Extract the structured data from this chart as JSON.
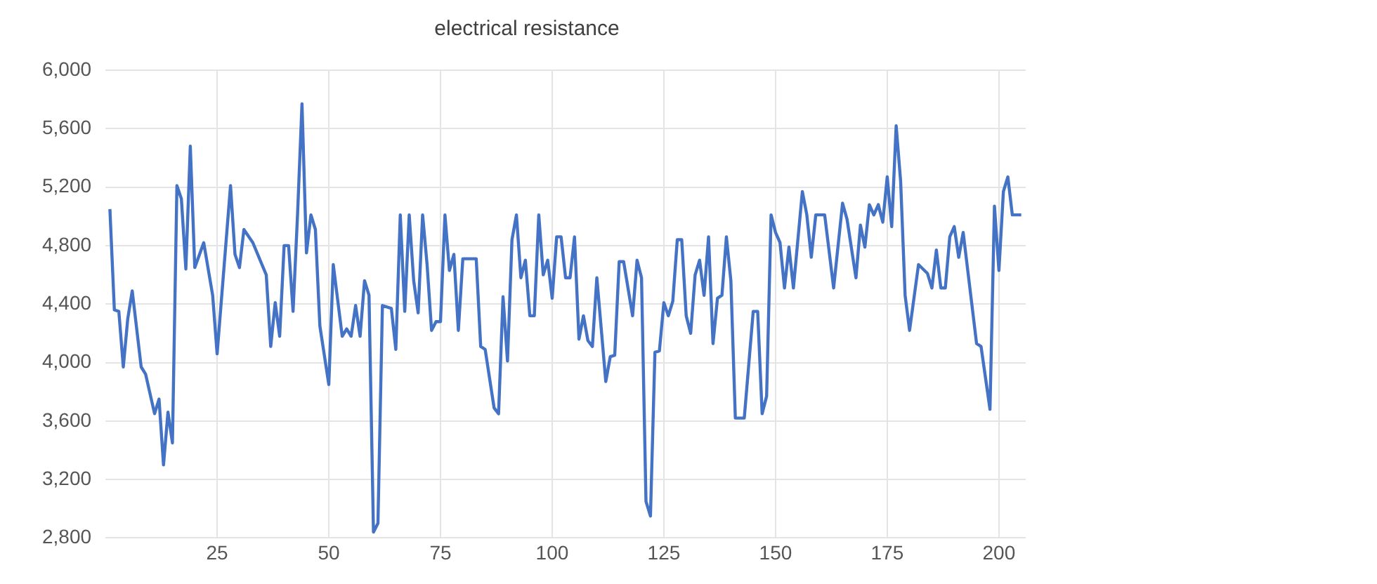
{
  "chart_data": {
    "type": "line",
    "title": "electrical resistance",
    "x": [
      1,
      2,
      3,
      4,
      5,
      6,
      8,
      9,
      11,
      12,
      13,
      14,
      15,
      16,
      17,
      18,
      19,
      20,
      22,
      24,
      25,
      28,
      29,
      30,
      31,
      33,
      36,
      37,
      38,
      39,
      40,
      41,
      42,
      43,
      44,
      45,
      46,
      47,
      48,
      50,
      51,
      53,
      54,
      55,
      56,
      57,
      58,
      59,
      60,
      61,
      62,
      64,
      65,
      66,
      67,
      68,
      69,
      70,
      71,
      72,
      73,
      74,
      75,
      76,
      77,
      78,
      79,
      80,
      83,
      84,
      85,
      87,
      88,
      89,
      90,
      91,
      92,
      93,
      94,
      95,
      96,
      97,
      98,
      99,
      100,
      101,
      102,
      103,
      104,
      105,
      106,
      107,
      108,
      109,
      110,
      112,
      113,
      114,
      115,
      116,
      118,
      119,
      120,
      121,
      122,
      123,
      124,
      125,
      126,
      127,
      128,
      129,
      130,
      131,
      132,
      133,
      134,
      135,
      136,
      137,
      138,
      139,
      140,
      141,
      143,
      145,
      146,
      147,
      148,
      149,
      150,
      151,
      152,
      153,
      154,
      156,
      157,
      158,
      159,
      161,
      163,
      165,
      166,
      168,
      169,
      170,
      171,
      172,
      173,
      174,
      175,
      176,
      177,
      178,
      179,
      180,
      182,
      184,
      185,
      186,
      187,
      188,
      189,
      190,
      191,
      192,
      195,
      196,
      198,
      199,
      200,
      201,
      202,
      203,
      205
    ],
    "series": [
      {
        "color": "#4472c4",
        "values": [
          5050,
          4360,
          4350,
          3970,
          4300,
          4490,
          3970,
          3920,
          3650,
          3750,
          3300,
          3660,
          3450,
          5210,
          5120,
          4640,
          5480,
          4650,
          4820,
          4460,
          4060,
          5210,
          4740,
          4650,
          4910,
          4820,
          4600,
          4110,
          4410,
          4180,
          4800,
          4800,
          4350,
          5010,
          5770,
          4750,
          5010,
          4910,
          4250,
          3850,
          4670,
          4180,
          4230,
          4180,
          4390,
          4180,
          4560,
          4460,
          2840,
          2900,
          4390,
          4370,
          4090,
          5010,
          4350,
          5010,
          4560,
          4340,
          5010,
          4670,
          4220,
          4280,
          4280,
          5010,
          4630,
          4740,
          4220,
          4710,
          4710,
          4110,
          4090,
          3690,
          3650,
          4450,
          4010,
          4840,
          5010,
          4580,
          4700,
          4320,
          4320,
          5010,
          4600,
          4700,
          4440,
          4860,
          4860,
          4580,
          4580,
          4860,
          4160,
          4320,
          4150,
          4110,
          4580,
          3870,
          4040,
          4050,
          4690,
          4690,
          4320,
          4700,
          4580,
          3050,
          2950,
          4070,
          4080,
          4410,
          4320,
          4420,
          4840,
          4840,
          4320,
          4200,
          4600,
          4700,
          4460,
          4860,
          4130,
          4440,
          4460,
          4860,
          4560,
          3620,
          3620,
          4350,
          4350,
          3650,
          3770,
          5010,
          4890,
          4820,
          4510,
          4790,
          4510,
          5170,
          5010,
          4720,
          5010,
          5010,
          4510,
          5090,
          4980,
          4580,
          4940,
          4790,
          5080,
          5010,
          5080,
          4960,
          5270,
          4930,
          5620,
          5240,
          4460,
          4220,
          4670,
          4610,
          4510,
          4770,
          4510,
          4510,
          4860,
          4930,
          4720,
          4890,
          4130,
          4110,
          3680,
          5070,
          4630,
          5170,
          5270,
          5010,
          5010
        ]
      }
    ],
    "xlim": [
      0,
      206
    ],
    "xticks": [
      25,
      50,
      75,
      100,
      125,
      150,
      175,
      200
    ],
    "ylim": [
      2800,
      6000
    ],
    "yticks": [
      {
        "value": 2800,
        "label": "2,800"
      },
      {
        "value": 3200,
        "label": "3,200"
      },
      {
        "value": 3600,
        "label": "3,600"
      },
      {
        "value": 4000,
        "label": "4,000"
      },
      {
        "value": 4400,
        "label": "4,400"
      },
      {
        "value": 4800,
        "label": "4,800"
      },
      {
        "value": 5200,
        "label": "5,200"
      },
      {
        "value": 5600,
        "label": "5,600"
      },
      {
        "value": 6000,
        "label": "6,000"
      }
    ],
    "grid": true,
    "legend": false,
    "marker": "none",
    "line_style": "solid"
  }
}
